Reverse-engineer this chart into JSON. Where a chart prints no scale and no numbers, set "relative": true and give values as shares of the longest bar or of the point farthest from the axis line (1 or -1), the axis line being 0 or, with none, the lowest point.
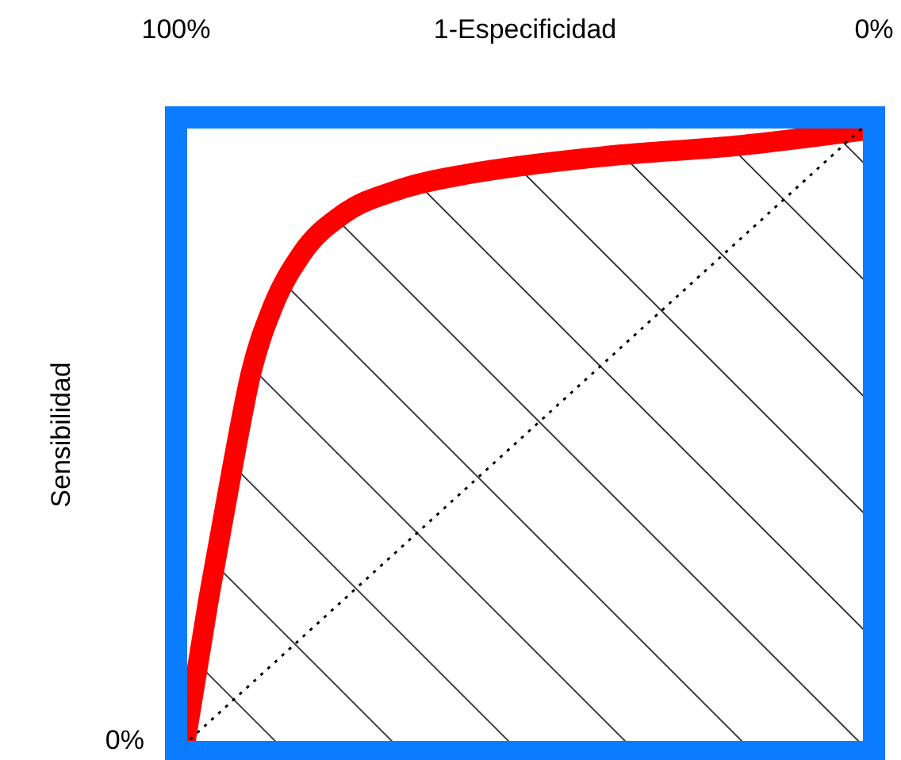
{
  "chart_data": {
    "type": "line",
    "xlabel": "1-Especificidad",
    "ylabel": "Sensibilidad",
    "xlim": [
      100,
      0
    ],
    "xticks": [
      {
        "value": 100,
        "label": "100%"
      },
      {
        "value": 0,
        "label": "0%"
      }
    ],
    "relative": true,
    "annotations": [
      "0%"
    ],
    "series": [
      {
        "color": "#ff0000",
        "x": [
          98.7,
          95.3,
          91.9,
          89.2,
          86.2,
          82,
          76,
          68.4,
          58.6,
          54.1,
          37.3,
          20,
          1.4
        ],
        "values": [
          0.015,
          0.243,
          0.45,
          0.6,
          0.7,
          0.785,
          0.848,
          0.885,
          0.91,
          0.918,
          0.94,
          0.955,
          0.98
        ]
      },
      {
        "color": "#000000",
        "line_style": "dotted",
        "x": [
          100,
          0
        ],
        "values": [
          0,
          1
        ]
      }
    ]
  }
}
